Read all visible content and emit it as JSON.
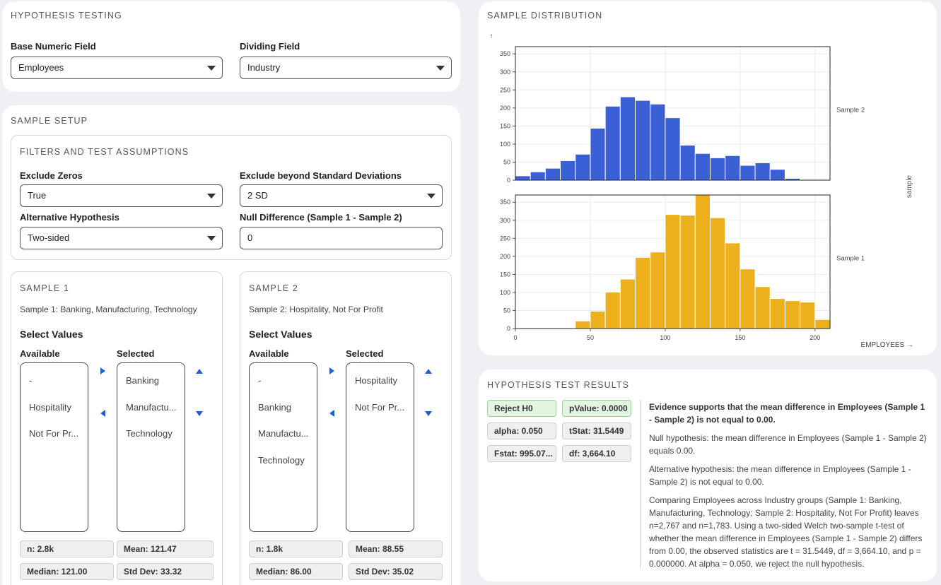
{
  "hypothesis": {
    "title": "HYPOTHESIS TESTING",
    "base_label": "Base Numeric Field",
    "base_value": "Employees",
    "divide_label": "Dividing Field",
    "divide_value": "Industry"
  },
  "setup": {
    "title": "SAMPLE SETUP",
    "filters_title": "FILTERS AND TEST ASSUMPTIONS",
    "exclude_zeros_label": "Exclude Zeros",
    "exclude_zeros_value": "True",
    "exclude_sd_label": "Exclude beyond Standard Deviations",
    "exclude_sd_value": "2 SD",
    "alt_label": "Alternative Hypothesis",
    "alt_value": "Two-sided",
    "null_label": "Null Difference (Sample 1 - Sample 2)",
    "null_value": "0"
  },
  "sample1": {
    "title": "SAMPLE 1",
    "desc": "Sample 1: Banking, Manufacturing, Technology",
    "select_heading": "Select Values",
    "available_label": "Available",
    "selected_label": "Selected",
    "available": [
      "-",
      "Hospitality",
      "Not For Pr..."
    ],
    "selected": [
      "Banking",
      "Manufactu...",
      "Technology"
    ],
    "n": "n: 2.8k",
    "mean": "Mean: 121.47",
    "median": "Median: 121.00",
    "std": "Std Dev: 33.32"
  },
  "sample2": {
    "title": "SAMPLE 2",
    "desc": "Sample 2: Hospitality, Not For Profit",
    "select_heading": "Select Values",
    "available_label": "Available",
    "selected_label": "Selected",
    "available": [
      "-",
      "Banking",
      "Manufactu...",
      "Technology"
    ],
    "selected": [
      "Hospitality",
      "Not For Pr..."
    ],
    "n": "n: 1.8k",
    "mean": "Mean: 88.55",
    "median": "Median: 86.00",
    "std": "Std Dev: 35.02"
  },
  "distribution": {
    "title": "SAMPLE DISTRIBUTION",
    "y_arrow": "↑",
    "facet_label": "sample",
    "x_label": "EMPLOYEES →"
  },
  "results": {
    "title": "HYPOTHESIS TEST RESULTS",
    "reject": "Reject H0",
    "pvalue": "pValue: 0.0000",
    "alpha": "alpha: 0.050",
    "tstat": "tStat: 31.5449",
    "fstat": "Fstat: 995.07...",
    "df": "df: 3,664.10",
    "conclusion": "Evidence supports that the mean difference in Employees (Sample 1 - Sample 2) is not equal to 0.00.",
    "null_hyp": "Null hypothesis: the mean difference in Employees (Sample 1 - Sample 2) equals 0.00.",
    "alt_hyp": "Alternative hypothesis: the mean difference in Employees (Sample 1 - Sample 2) is not equal to 0.00.",
    "summary": "Comparing Employees across Industry groups (Sample 1: Banking, Manufacturing, Technology; Sample 2: Hospitality, Not For Profit) leaves n=2,767 and n=1,783. Using a two-sided Welch two-sample t-test of whether the mean difference in Employees (Sample 1 - Sample 2) differs from 0.00, the observed statistics are t = 31.5449, df = 3,664.10, and p = 0.000000. At alpha = 0.050, we reject the null hypothesis."
  },
  "chart_data": {
    "type": "bar",
    "xlabel": "EMPLOYEES →",
    "ylabel": "",
    "xlim": [
      0,
      210
    ],
    "x_ticks": [
      0,
      50,
      100,
      150,
      200
    ],
    "ylim": [
      0,
      370
    ],
    "y_ticks": [
      0,
      50,
      100,
      150,
      200,
      250,
      300,
      350
    ],
    "bin_width": 10,
    "facets": [
      {
        "name": "Sample 2",
        "color": "#3b5fd4",
        "bins": [
          0,
          10,
          20,
          30,
          40,
          50,
          60,
          70,
          80,
          90,
          100,
          110,
          120,
          130,
          140,
          150,
          160,
          170,
          180
        ],
        "values": [
          12,
          23,
          33,
          54,
          72,
          144,
          205,
          231,
          221,
          211,
          173,
          97,
          74,
          62,
          68,
          41,
          48,
          30,
          5
        ]
      },
      {
        "name": "Sample 1",
        "color": "#ecb01c",
        "bins": [
          40,
          50,
          60,
          70,
          80,
          90,
          100,
          110,
          120,
          130,
          140,
          150,
          160,
          170,
          180,
          190,
          200
        ],
        "values": [
          21,
          48,
          101,
          137,
          197,
          212,
          316,
          314,
          370,
          307,
          237,
          165,
          116,
          83,
          77,
          73,
          25
        ]
      }
    ]
  }
}
